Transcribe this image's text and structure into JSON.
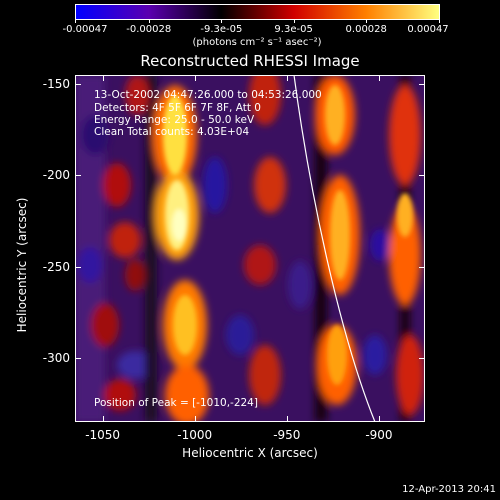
{
  "colorbar": {
    "tick_labels": [
      "-0.00047",
      "-0.00028",
      "-9.3e-05",
      "9.3e-05",
      "0.00028",
      "0.00047"
    ],
    "units": "(photons cm⁻² s⁻¹ asec⁻²)",
    "colors": [
      "#0000ff",
      "#5a00b0",
      "#000000",
      "#d00000",
      "#ff8000",
      "#ffff80"
    ]
  },
  "title": "Reconstructed RHESSI Image",
  "info": {
    "line1": "13-Oct-2002 04:47:26.000 to 04:53:26.000",
    "line2": "Detectors: 4F 5F 6F 7F 8F, Att 0",
    "line3": "Energy Range: 25.0 - 50.0 keV",
    "line4": "Clean     Total counts: 4.03E+04"
  },
  "peak": "Position of Peak = [-1010,-224]",
  "footer": "12-Apr-2013 20:41",
  "chart_data": {
    "type": "heatmap",
    "xlabel": "Heliocentric X (arcsec)",
    "ylabel": "Heliocentric Y (arcsec)",
    "xlim": [
      -1065,
      -875
    ],
    "ylim": [
      -335,
      -145
    ],
    "x_ticks": [
      -1050,
      -1000,
      -950,
      -900
    ],
    "y_ticks": [
      -150,
      -200,
      -250,
      -300
    ],
    "x_tick_labels": [
      "-1050",
      "-1000",
      "-950",
      "-900"
    ],
    "y_tick_labels": [
      "-150",
      "-200",
      "-250",
      "-300"
    ],
    "colorbar_range": [
      -0.00047,
      0.00047
    ],
    "peak_position": [
      -1010,
      -224
    ]
  }
}
